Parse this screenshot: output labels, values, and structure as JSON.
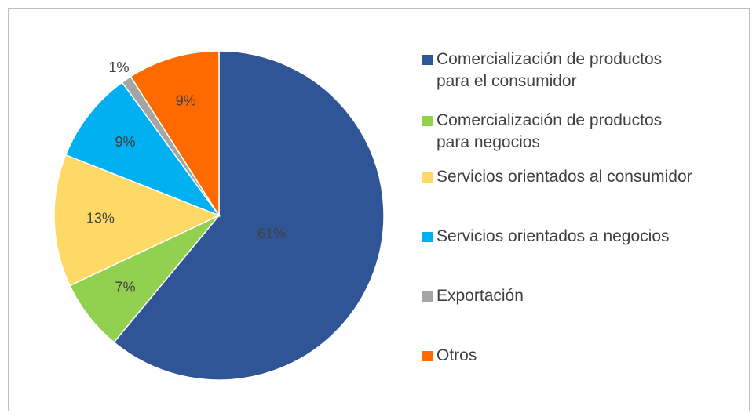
{
  "chart_data": {
    "type": "pie",
    "categories": [
      "Comercialización de productos para el consumidor",
      "Comercialización de productos para negocios",
      "Servicios orientados al consumidor",
      "Servicios orientados a negocios",
      "Exportación",
      "Otros"
    ],
    "values": [
      61,
      7,
      13,
      9,
      1,
      9
    ],
    "value_labels": [
      "61%",
      "7%",
      "13%",
      "9%",
      "1%",
      "9%"
    ],
    "colors": [
      "#2f5597",
      "#92d050",
      "#ffd966",
      "#00b0f0",
      "#a5a5a5",
      "#ff6a00"
    ],
    "legend": "right"
  }
}
